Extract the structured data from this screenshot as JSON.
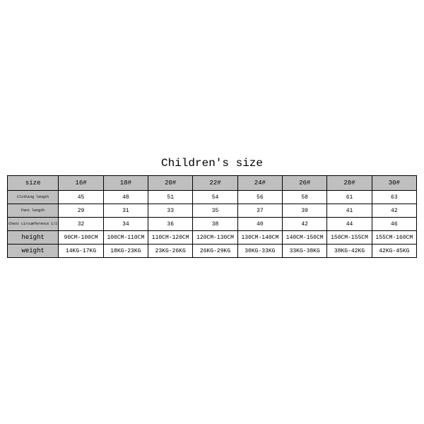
{
  "title": "Children's size",
  "table": {
    "type": "table",
    "background_color": "#ffffff",
    "header_bg": "#bfbfbf",
    "label_bg": "#bfbfbf",
    "cell_bg": "#ffffff",
    "border_color": "#000000",
    "font_family": "Courier New",
    "title_fontsize": 16,
    "header_fontsize": 9,
    "cell_fontsize": 8,
    "columns": [
      "size",
      "16#",
      "18#",
      "20#",
      "22#",
      "24#",
      "26#",
      "28#",
      "30#"
    ],
    "rows": [
      {
        "label": "Clothing length",
        "label_size": "small",
        "cells": [
          "45",
          "48",
          "51",
          "54",
          "56",
          "58",
          "61",
          "63"
        ]
      },
      {
        "label": "Pant length",
        "label_size": "small",
        "cells": [
          "29",
          "31",
          "33",
          "35",
          "37",
          "39",
          "41",
          "42"
        ]
      },
      {
        "label": "Chest circumference 1/2",
        "label_size": "small",
        "cells": [
          "32",
          "34",
          "36",
          "38",
          "40",
          "42",
          "44",
          "46"
        ]
      },
      {
        "label": "height",
        "label_size": "big",
        "cells": [
          "90CM-100CM",
          "100CM-110CM",
          "110CM-120CM",
          "120CM-130CM",
          "130CM-140CM",
          "140CM-150CM",
          "150CM-155CM",
          "155CM-160CM"
        ]
      },
      {
        "label": "weight",
        "label_size": "big",
        "cells": [
          "14KG-17KG",
          "18KG-23KG",
          "23KG-26KG",
          "26KG-29KG",
          "30KG-33KG",
          "33KG-38KG",
          "38KG-42KG",
          "42KG-45KG"
        ]
      }
    ]
  }
}
